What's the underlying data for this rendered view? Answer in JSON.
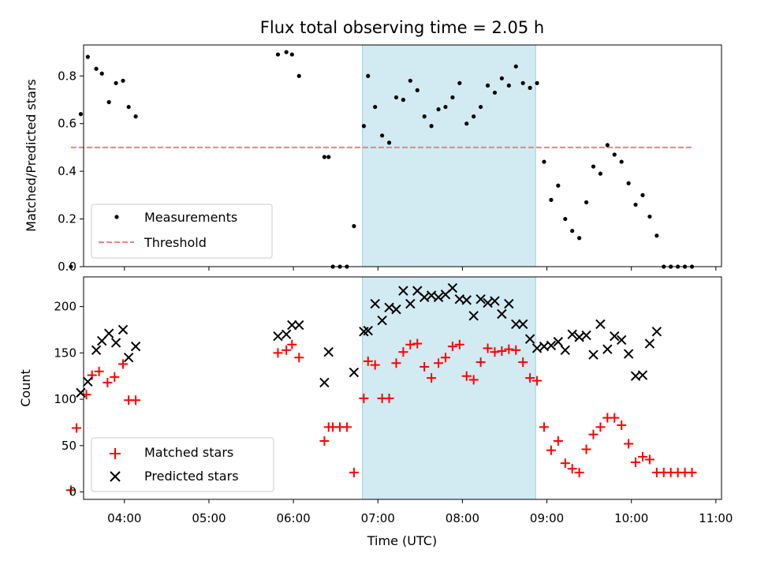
{
  "chart_data": [
    {
      "type": "scatter",
      "title": "Flux total observing time = 2.05 h",
      "ylabel": "Matched/Predicted stars",
      "xlim": [
        "03:31",
        "11:04"
      ],
      "ylim": [
        0,
        0.93
      ],
      "yticks": [
        0.0,
        0.2,
        0.4,
        0.6,
        0.8
      ],
      "ytick_labels": [
        "0.0",
        "0.2",
        "0.4",
        "0.6",
        "0.8"
      ],
      "grid": false,
      "legend_position": "lower-left",
      "shaded_band": {
        "start": "06:49",
        "end": "08:52",
        "color": "#add8e6"
      },
      "series": [
        {
          "name": "Measurements",
          "marker": "dot",
          "color": "#000000",
          "points": [
            [
              "03:22",
              0.0
            ],
            [
              "03:29",
              0.64
            ],
            [
              "03:34",
              0.88
            ],
            [
              "03:40",
              0.83
            ],
            [
              "03:44",
              0.81
            ],
            [
              "03:49",
              0.69
            ],
            [
              "03:54",
              0.77
            ],
            [
              "03:59",
              0.78
            ],
            [
              "04:03",
              0.67
            ],
            [
              "04:08",
              0.63
            ],
            [
              "05:49",
              0.89
            ],
            [
              "05:55",
              0.9
            ],
            [
              "05:59",
              0.89
            ],
            [
              "06:04",
              0.8
            ],
            [
              "06:22",
              0.46
            ],
            [
              "06:25",
              0.46
            ],
            [
              "06:28",
              0.0
            ],
            [
              "06:33",
              0.0
            ],
            [
              "06:38",
              0.0
            ],
            [
              "06:43",
              0.17
            ],
            [
              "06:50",
              0.59
            ],
            [
              "06:53",
              0.8
            ],
            [
              "06:58",
              0.67
            ],
            [
              "07:03",
              0.55
            ],
            [
              "07:08",
              0.52
            ],
            [
              "07:13",
              0.71
            ],
            [
              "07:18",
              0.7
            ],
            [
              "07:23",
              0.78
            ],
            [
              "07:28",
              0.74
            ],
            [
              "07:33",
              0.63
            ],
            [
              "07:38",
              0.59
            ],
            [
              "07:43",
              0.66
            ],
            [
              "07:48",
              0.67
            ],
            [
              "07:53",
              0.71
            ],
            [
              "07:58",
              0.77
            ],
            [
              "08:03",
              0.6
            ],
            [
              "08:08",
              0.63
            ],
            [
              "08:13",
              0.67
            ],
            [
              "08:18",
              0.76
            ],
            [
              "08:23",
              0.73
            ],
            [
              "08:28",
              0.79
            ],
            [
              "08:33",
              0.76
            ],
            [
              "08:38",
              0.84
            ],
            [
              "08:43",
              0.77
            ],
            [
              "08:48",
              0.75
            ],
            [
              "08:53",
              0.77
            ],
            [
              "08:58",
              0.44
            ],
            [
              "09:03",
              0.28
            ],
            [
              "09:08",
              0.34
            ],
            [
              "09:13",
              0.2
            ],
            [
              "09:18",
              0.15
            ],
            [
              "09:23",
              0.12
            ],
            [
              "09:28",
              0.27
            ],
            [
              "09:33",
              0.42
            ],
            [
              "09:38",
              0.39
            ],
            [
              "09:43",
              0.51
            ],
            [
              "09:48",
              0.47
            ],
            [
              "09:53",
              0.44
            ],
            [
              "09:58",
              0.35
            ],
            [
              "10:03",
              0.26
            ],
            [
              "10:08",
              0.3
            ],
            [
              "10:13",
              0.21
            ],
            [
              "10:18",
              0.13
            ],
            [
              "10:23",
              0.0
            ],
            [
              "10:28",
              0.0
            ],
            [
              "10:33",
              0.0
            ],
            [
              "10:38",
              0.0
            ],
            [
              "10:43",
              0.0
            ]
          ]
        },
        {
          "name": "Threshold",
          "style": "dashed",
          "color": "#f08080",
          "x": [
            "03:22",
            "10:43"
          ],
          "y": [
            0.5,
            0.5
          ]
        }
      ]
    },
    {
      "type": "scatter",
      "xlabel": "Time (UTC)",
      "ylabel": "Count",
      "xlim": [
        "03:31",
        "11:04"
      ],
      "ylim": [
        -8,
        232
      ],
      "xticks": [
        "04:00",
        "05:00",
        "06:00",
        "07:00",
        "08:00",
        "09:00",
        "10:00",
        "11:00"
      ],
      "yticks": [
        0,
        50,
        100,
        150,
        200
      ],
      "ytick_labels": [
        "0",
        "50",
        "100",
        "150",
        "200"
      ],
      "grid": false,
      "legend_position": "lower-left",
      "shaded_band": {
        "start": "06:49",
        "end": "08:52",
        "color": "#add8e6"
      },
      "series": [
        {
          "name": "Matched stars",
          "marker": "plus",
          "color": "#ff0000",
          "points": [
            [
              "03:22",
              2
            ],
            [
              "03:26",
              69
            ],
            [
              "03:33",
              105
            ],
            [
              "03:37",
              126
            ],
            [
              "03:42",
              130
            ],
            [
              "03:48",
              118
            ],
            [
              "03:53",
              124
            ],
            [
              "03:59",
              138
            ],
            [
              "04:03",
              99
            ],
            [
              "04:08",
              99
            ],
            [
              "05:49",
              150
            ],
            [
              "05:55",
              153
            ],
            [
              "05:59",
              159
            ],
            [
              "06:04",
              145
            ],
            [
              "06:22",
              55
            ],
            [
              "06:25",
              70
            ],
            [
              "06:28",
              70
            ],
            [
              "06:33",
              70
            ],
            [
              "06:38",
              70
            ],
            [
              "06:43",
              21
            ],
            [
              "06:50",
              101
            ],
            [
              "06:53",
              141
            ],
            [
              "06:58",
              137
            ],
            [
              "07:03",
              101
            ],
            [
              "07:08",
              101
            ],
            [
              "07:13",
              139
            ],
            [
              "07:18",
              151
            ],
            [
              "07:23",
              159
            ],
            [
              "07:28",
              160
            ],
            [
              "07:33",
              135
            ],
            [
              "07:38",
              123
            ],
            [
              "07:43",
              139
            ],
            [
              "07:48",
              145
            ],
            [
              "07:53",
              157
            ],
            [
              "07:58",
              159
            ],
            [
              "08:03",
              125
            ],
            [
              "08:08",
              121
            ],
            [
              "08:13",
              140
            ],
            [
              "08:18",
              155
            ],
            [
              "08:23",
              151
            ],
            [
              "08:28",
              152
            ],
            [
              "08:33",
              154
            ],
            [
              "08:38",
              153
            ],
            [
              "08:43",
              140
            ],
            [
              "08:48",
              123
            ],
            [
              "08:53",
              120
            ],
            [
              "08:58",
              70
            ],
            [
              "09:03",
              45
            ],
            [
              "09:08",
              55
            ],
            [
              "09:13",
              31
            ],
            [
              "09:18",
              25
            ],
            [
              "09:23",
              21
            ],
            [
              "09:28",
              46
            ],
            [
              "09:33",
              62
            ],
            [
              "09:38",
              70
            ],
            [
              "09:43",
              80
            ],
            [
              "09:48",
              80
            ],
            [
              "09:53",
              72
            ],
            [
              "09:58",
              52
            ],
            [
              "10:03",
              32
            ],
            [
              "10:08",
              38
            ],
            [
              "10:13",
              35
            ],
            [
              "10:18",
              21
            ],
            [
              "10:23",
              21
            ],
            [
              "10:28",
              21
            ],
            [
              "10:33",
              21
            ],
            [
              "10:38",
              21
            ],
            [
              "10:43",
              21
            ]
          ]
        },
        {
          "name": "Predicted stars",
          "marker": "x",
          "color": "#000000",
          "points": [
            [
              "03:29",
              107
            ],
            [
              "03:34",
              119
            ],
            [
              "03:40",
              153
            ],
            [
              "03:44",
              163
            ],
            [
              "03:49",
              171
            ],
            [
              "03:54",
              161
            ],
            [
              "03:59",
              175
            ],
            [
              "04:03",
              145
            ],
            [
              "04:08",
              157
            ],
            [
              "05:49",
              168
            ],
            [
              "05:55",
              170
            ],
            [
              "05:59",
              180
            ],
            [
              "06:04",
              180
            ],
            [
              "06:22",
              118
            ],
            [
              "06:25",
              151
            ],
            [
              "06:43",
              129
            ],
            [
              "06:50",
              173
            ],
            [
              "06:53",
              174
            ],
            [
              "06:58",
              203
            ],
            [
              "07:03",
              185
            ],
            [
              "07:08",
              199
            ],
            [
              "07:13",
              197
            ],
            [
              "07:18",
              217
            ],
            [
              "07:23",
              203
            ],
            [
              "07:28",
              217
            ],
            [
              "07:33",
              210
            ],
            [
              "07:38",
              212
            ],
            [
              "07:43",
              210
            ],
            [
              "07:48",
              213
            ],
            [
              "07:53",
              220
            ],
            [
              "07:58",
              208
            ],
            [
              "08:03",
              207
            ],
            [
              "08:08",
              190
            ],
            [
              "08:13",
              208
            ],
            [
              "08:18",
              204
            ],
            [
              "08:23",
              206
            ],
            [
              "08:28",
              192
            ],
            [
              "08:33",
              203
            ],
            [
              "08:38",
              181
            ],
            [
              "08:43",
              181
            ],
            [
              "08:48",
              165
            ],
            [
              "08:53",
              155
            ],
            [
              "08:58",
              157
            ],
            [
              "09:03",
              158
            ],
            [
              "09:08",
              162
            ],
            [
              "09:13",
              153
            ],
            [
              "09:18",
              170
            ],
            [
              "09:23",
              167
            ],
            [
              "09:28",
              169
            ],
            [
              "09:33",
              148
            ],
            [
              "09:38",
              181
            ],
            [
              "09:43",
              154
            ],
            [
              "09:48",
              168
            ],
            [
              "09:53",
              164
            ],
            [
              "09:58",
              149
            ],
            [
              "10:03",
              125
            ],
            [
              "10:08",
              126
            ],
            [
              "10:13",
              160
            ],
            [
              "10:18",
              173
            ]
          ]
        }
      ]
    }
  ]
}
